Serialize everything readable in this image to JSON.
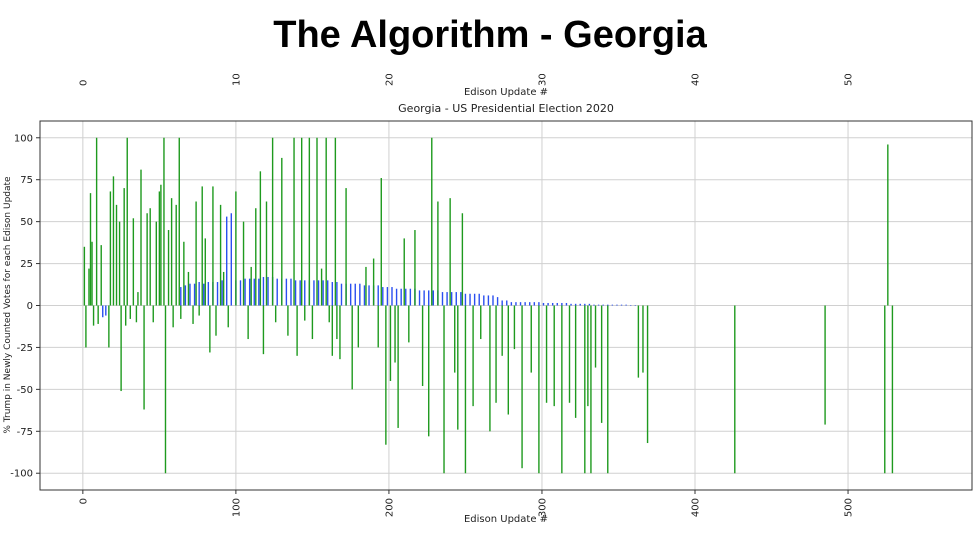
{
  "slide_title": "The Algorithm - Georgia",
  "chart_data": {
    "type": "bar",
    "title": "Georgia - US Presidential Election 2020",
    "xlabel": "Edison Update #",
    "top_xlabel": "Edison Update #",
    "ylabel": "% Trump in Newly Counted Votes for each Edison Update",
    "xlim": [
      -28,
      581
    ],
    "ylim": [
      -110,
      110
    ],
    "xticks": [
      0,
      100,
      200,
      300,
      400,
      500
    ],
    "yticks": [
      -100,
      -75,
      -50,
      -25,
      0,
      25,
      50,
      75,
      100
    ],
    "grid": true,
    "series": [
      {
        "color": "#2a4ff0",
        "x": [
          13,
          15,
          64,
          67,
          70,
          73,
          76,
          79,
          82,
          85,
          88,
          91,
          94,
          97,
          100,
          103,
          106,
          109,
          112,
          115,
          118,
          121,
          124,
          127,
          130,
          133,
          136,
          139,
          142,
          145,
          148,
          151,
          154,
          157,
          160,
          163,
          166,
          169,
          172,
          175,
          178,
          181,
          184,
          187,
          190,
          193,
          196,
          199,
          202,
          205,
          208,
          211,
          214,
          217,
          220,
          223,
          226,
          229,
          232,
          235,
          238,
          241,
          244,
          247,
          250,
          253,
          256,
          259,
          262,
          265,
          268,
          271,
          274,
          277,
          280,
          283,
          286,
          289,
          292,
          295,
          298,
          301,
          304,
          307,
          310,
          313,
          316,
          319,
          322,
          325,
          328,
          331,
          334,
          337,
          340,
          343,
          346,
          349,
          352,
          355,
          358,
          361
        ],
        "values": [
          -7,
          -6,
          11,
          12,
          13,
          13,
          14,
          13,
          14,
          14,
          14,
          15,
          53,
          55,
          15,
          15,
          16,
          16,
          16,
          16,
          17,
          17,
          17,
          16,
          16,
          16,
          16,
          15,
          15,
          15,
          15,
          15,
          15,
          15,
          15,
          14,
          14,
          13,
          13,
          13,
          13,
          13,
          12,
          12,
          12,
          12,
          11,
          11,
          11,
          10,
          10,
          10,
          10,
          10,
          9,
          9,
          9,
          9,
          9,
          8,
          8,
          8,
          8,
          8,
          7,
          7,
          7,
          7,
          6,
          6,
          6,
          5,
          3,
          3,
          2,
          2,
          2,
          2,
          2,
          2,
          2,
          1.5,
          1.5,
          1.5,
          1.5,
          1.5,
          1.5,
          1,
          1,
          1,
          1,
          1,
          0.5,
          0.5,
          0.5,
          0.5,
          0.5,
          0.5,
          0.5,
          0.5,
          0.3,
          0.3
        ]
      },
      {
        "color": "#1e9a1e",
        "x": [
          1,
          2,
          4,
          5,
          6,
          7,
          9,
          10,
          12,
          17,
          18,
          20,
          22,
          24,
          25,
          27,
          28,
          29,
          31,
          33,
          35,
          36,
          38,
          40,
          42,
          44,
          46,
          48,
          50,
          51,
          53,
          54,
          56,
          58,
          59,
          61,
          63,
          64,
          66,
          69,
          72,
          74,
          76,
          78,
          80,
          83,
          85,
          87,
          90,
          92,
          95,
          100,
          105,
          108,
          110,
          113,
          116,
          118,
          120,
          124,
          126,
          130,
          134,
          138,
          140,
          143,
          145,
          148,
          150,
          153,
          156,
          159,
          161,
          163,
          165,
          166,
          168,
          172,
          176,
          180,
          185,
          190,
          193,
          195,
          198,
          201,
          204,
          206,
          210,
          213,
          217,
          222,
          226,
          228,
          232,
          236,
          240,
          243,
          245,
          248,
          250,
          255,
          260,
          266,
          270,
          274,
          278,
          282,
          287,
          293,
          298,
          303,
          308,
          313,
          318,
          322,
          328,
          330,
          332,
          335,
          339,
          343,
          363,
          366,
          369,
          426,
          485,
          524,
          526,
          529
        ],
        "values": [
          35,
          -25,
          22,
          67,
          38,
          -12,
          100,
          -11,
          36,
          -25,
          68,
          77,
          60,
          50,
          -51,
          70,
          -12,
          100,
          -8,
          52,
          -10,
          8,
          81,
          -62,
          55,
          58,
          -10,
          50,
          68,
          72,
          100,
          -100,
          45,
          64,
          -13,
          60,
          100,
          -8,
          38,
          20,
          -11,
          62,
          -6,
          71,
          40,
          -28,
          71,
          -18,
          60,
          20,
          -13,
          68,
          50,
          -20,
          23,
          58,
          80,
          -29,
          62,
          100,
          -10,
          88,
          -18,
          100,
          -30,
          100,
          -9,
          100,
          -20,
          100,
          22,
          100,
          -10,
          -30,
          100,
          -20,
          -32,
          70,
          -50,
          -25,
          23,
          28,
          -25,
          76,
          -83,
          -45,
          -34,
          -73,
          40,
          -22,
          45,
          -48,
          -78,
          100,
          62,
          -100,
          64,
          -40,
          -74,
          55,
          -100,
          -60,
          -20,
          -75,
          -58,
          -30,
          -65,
          -26,
          -97,
          -40,
          -100,
          -58,
          -60,
          -100,
          -58,
          -67,
          -100,
          -60,
          -100,
          -37,
          -70,
          -100,
          -43,
          -40,
          -82,
          -100,
          -71,
          -100,
          96,
          -100
        ]
      }
    ]
  }
}
